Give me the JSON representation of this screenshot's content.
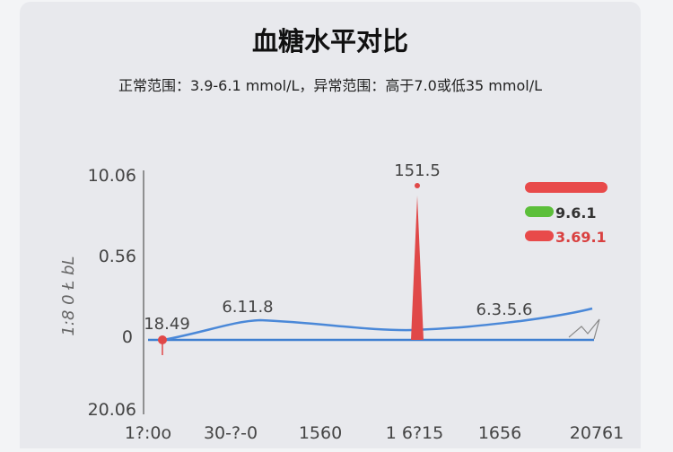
{
  "header": {
    "title": "血糖水平对比",
    "subtitle": "正常范围：3.9-6.1 mmol/L，异常范围：高于7.0或低35 mmol/L"
  },
  "axis": {
    "y_label": "1:8 0 Ł bL",
    "y_tick_labels": [
      "10.06",
      "0.56",
      "0",
      "20.06"
    ],
    "x_tick_labels": [
      "1?:0o",
      "30-?-0",
      "1560",
      "1 6?15",
      "1656",
      "20761"
    ]
  },
  "annotations": [
    "18.49",
    "6.11.8",
    "151.5",
    "6.3.5.6"
  ],
  "legend": [
    "9.6.1",
    "3.69.1"
  ]
}
